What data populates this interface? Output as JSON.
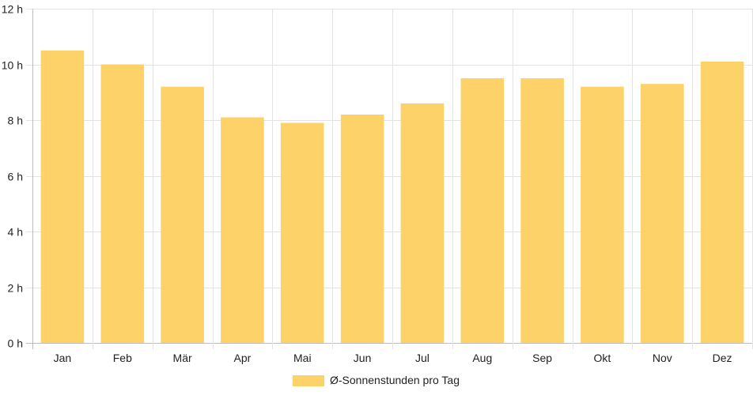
{
  "chart_data": {
    "type": "bar",
    "categories": [
      "Jan",
      "Feb",
      "Mär",
      "Apr",
      "Mai",
      "Jun",
      "Jul",
      "Aug",
      "Sep",
      "Okt",
      "Nov",
      "Dez"
    ],
    "series": [
      {
        "name": "Ø-Sonnenstunden pro Tag",
        "color": "#fdd268",
        "values": [
          10.5,
          10.0,
          9.2,
          8.1,
          7.9,
          8.2,
          8.6,
          9.5,
          9.5,
          9.2,
          9.3,
          10.1
        ]
      }
    ],
    "y_ticks": [
      "0 h",
      "2 h",
      "4 h",
      "6 h",
      "8 h",
      "10 h",
      "12 h"
    ],
    "ylim": [
      0,
      12
    ],
    "ytick_step": 2,
    "grid": true,
    "legend_position": "bottom"
  }
}
